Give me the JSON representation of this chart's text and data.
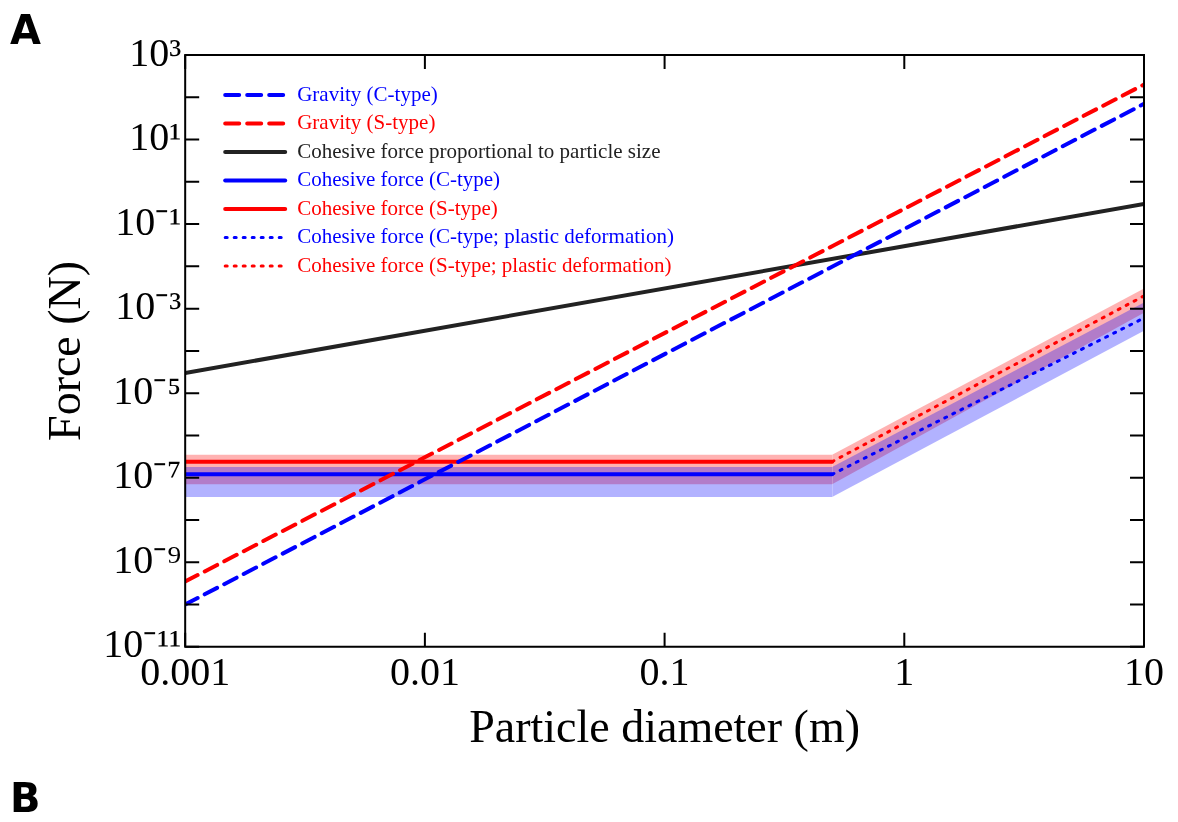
{
  "chart_data": {
    "type": "line",
    "xlabel": "Particle diameter (m)",
    "ylabel": "Force (N)",
    "log": "xy",
    "grid": false,
    "legend": "top left",
    "xlim": [
      0.001,
      10
    ],
    "xticks": [
      0.001,
      0.01,
      0.1,
      1,
      10
    ],
    "ylim": [
      1e-11,
      1000
    ],
    "yticks": [
      {
        "value": 1e-11,
        "label": "10⁻¹¹"
      },
      {
        "value": 1e-10,
        "label": null
      },
      {
        "value": 1e-09,
        "label": "10⁻⁹"
      },
      {
        "value": 1e-08,
        "label": null
      },
      {
        "value": 1e-07,
        "label": "10⁻⁷"
      },
      {
        "value": 1e-06,
        "label": null
      },
      {
        "value": 1e-05,
        "label": "10⁻⁵"
      },
      {
        "value": 0.0001,
        "label": null
      },
      {
        "value": 0.001,
        "label": "10⁻³"
      },
      {
        "value": 0.01,
        "label": null
      },
      {
        "value": 0.1,
        "label": "10⁻¹"
      },
      {
        "value": 1,
        "label": null
      },
      {
        "value": 10,
        "label": "10¹"
      },
      {
        "value": 100,
        "label": null
      },
      {
        "value": 1000,
        "label": "10³"
      }
    ],
    "annotations": [
      "A",
      "B"
    ],
    "series": [
      {
        "name": "Gravity (C-type)",
        "color": "#0000ff",
        "line_style": "dashed",
        "x": [
          0.001,
          10
        ],
        "values": [
          1e-10,
          70
        ]
      },
      {
        "name": "Gravity (S-type)",
        "color": "#ff0000",
        "line_style": "dashed",
        "x": [
          0.001,
          10
        ],
        "values": [
          3.5e-10,
          200
        ]
      },
      {
        "name": "Cohesive force proportional to particle size",
        "color": "#222222",
        "line_style": "solid",
        "x": [
          0.001,
          10
        ],
        "values": [
          3e-05,
          0.3
        ]
      },
      {
        "name": "Cohesive force (C-type)",
        "color": "#0000ff",
        "line_style": "solid",
        "x": [
          0.001,
          0.5
        ],
        "values": [
          1.2e-07,
          1.2e-07
        ],
        "lower": [
          3.5e-08,
          3.5e-08
        ],
        "upper": [
          1.8e-07,
          1.8e-07
        ]
      },
      {
        "name": "Cohesive force (S-type)",
        "color": "#ff0000",
        "line_style": "solid",
        "x": [
          0.001,
          0.5
        ],
        "values": [
          2.4e-07,
          2.4e-07
        ],
        "lower": [
          7e-08,
          7e-08
        ],
        "upper": [
          3.5e-07,
          3.5e-07
        ]
      },
      {
        "name": "Cohesive force (C-type; plastic deformation)",
        "color": "#0000ff",
        "line_style": "dotted",
        "x": [
          0.5,
          10
        ],
        "values": [
          1.2e-07,
          0.0006
        ],
        "lower": [
          3.5e-08,
          0.0003
        ],
        "upper": [
          1.8e-07,
          0.0014
        ]
      },
      {
        "name": "Cohesive force (S-type; plastic deformation)",
        "color": "#ff0000",
        "line_style": "dotted",
        "x": [
          0.5,
          10
        ],
        "values": [
          2.4e-07,
          0.002
        ],
        "lower": [
          7e-08,
          0.0008
        ],
        "upper": [
          3.5e-07,
          0.003
        ]
      }
    ]
  }
}
